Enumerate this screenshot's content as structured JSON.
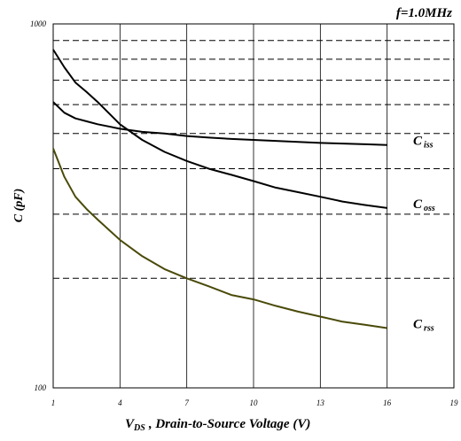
{
  "chart_data": {
    "type": "line",
    "title": "f=1.0MHz",
    "xlabel": "V_DS , Drain-to-Source Voltage (V)",
    "xlabel_sub": "DS",
    "xlabel_main": ", Drain-to-Source Voltage (V)",
    "xlabel_prefix": "V",
    "ylabel": "C (pF)",
    "xlim": [
      1,
      19
    ],
    "ylim": [
      100,
      1000
    ],
    "yscale": "log",
    "x_ticks": [
      "1",
      "4",
      "7",
      "10",
      "13",
      "16",
      "19"
    ],
    "y_ticks": [
      "100",
      "1000"
    ],
    "grid": true,
    "series": [
      {
        "name": "C_iss",
        "label_main": "C",
        "label_sub": "iss",
        "color": "#000000",
        "x": [
          1,
          1.5,
          2,
          2.5,
          3,
          4,
          5,
          6,
          7,
          8,
          9,
          10,
          11,
          12,
          13,
          14,
          15,
          16
        ],
        "y": [
          610,
          570,
          550,
          540,
          530,
          515,
          505,
          500,
          492,
          487,
          483,
          480,
          477,
          474,
          471,
          469,
          467,
          465
        ]
      },
      {
        "name": "C_oss",
        "label_main": "C",
        "label_sub": "oss",
        "color": "#000000",
        "x": [
          1,
          1.5,
          2,
          2.5,
          3,
          4,
          5,
          6,
          7,
          8,
          9,
          10,
          11,
          12,
          13,
          14,
          15,
          16
        ],
        "y": [
          850,
          760,
          690,
          650,
          610,
          530,
          480,
          445,
          420,
          400,
          385,
          370,
          355,
          345,
          335,
          325,
          318,
          312
        ]
      },
      {
        "name": "C_rss",
        "label_main": "C",
        "label_sub": "rss",
        "color": "#4a4a0a",
        "x": [
          1,
          1.5,
          2,
          2.5,
          3,
          4,
          5,
          6,
          7,
          8,
          9,
          10,
          11,
          12,
          13,
          14,
          15,
          16
        ],
        "y": [
          455,
          380,
          335,
          310,
          290,
          255,
          230,
          212,
          200,
          190,
          180,
          175,
          168,
          162,
          157,
          152,
          149,
          146
        ]
      }
    ]
  }
}
